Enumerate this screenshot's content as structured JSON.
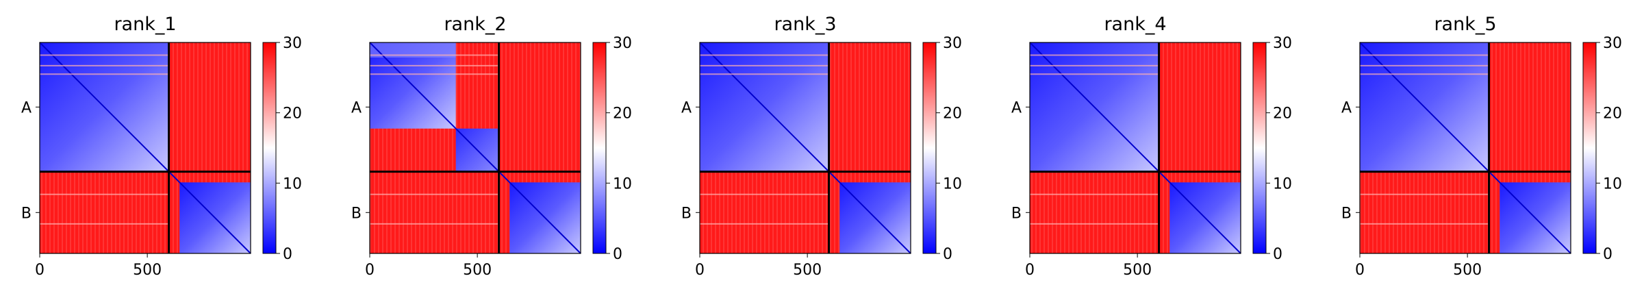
{
  "figure": {
    "colormap": {
      "low": "#0000ff",
      "mid": "#ffffff",
      "high": "#ff0000"
    },
    "chain_divider_color": "#000000"
  },
  "chart_data": [
    {
      "type": "heatmap",
      "title": "rank_1",
      "x_ticks": [
        "0",
        "500"
      ],
      "y_tick_labels": [
        "A",
        "B"
      ],
      "colorbar": {
        "ticks": [
          "0",
          "10",
          "20",
          "30"
        ],
        "range": [
          0,
          30
        ]
      },
      "n_residues": 980,
      "chain_break": 600,
      "blue_blocks": [
        [
          0,
          600,
          0,
          600
        ],
        [
          650,
          980,
          650,
          980
        ]
      ],
      "notes_domain_boundary": null
    },
    {
      "type": "heatmap",
      "title": "rank_2",
      "x_ticks": [
        "0",
        "500"
      ],
      "y_tick_labels": [
        "A",
        "B"
      ],
      "colorbar": {
        "ticks": [
          "0",
          "10",
          "20",
          "30"
        ],
        "range": [
          0,
          30
        ]
      },
      "n_residues": 980,
      "chain_break": 600,
      "blue_blocks": [
        [
          0,
          600,
          0,
          600
        ],
        [
          650,
          980,
          650,
          980
        ]
      ],
      "notes_domain_boundary": 400
    },
    {
      "type": "heatmap",
      "title": "rank_3",
      "x_ticks": [
        "0",
        "500"
      ],
      "y_tick_labels": [
        "A",
        "B"
      ],
      "colorbar": {
        "ticks": [
          "0",
          "10",
          "20",
          "30"
        ],
        "range": [
          0,
          30
        ]
      },
      "n_residues": 980,
      "chain_break": 600,
      "blue_blocks": [
        [
          0,
          600,
          0,
          600
        ],
        [
          650,
          980,
          650,
          980
        ]
      ],
      "notes_domain_boundary": null
    },
    {
      "type": "heatmap",
      "title": "rank_4",
      "x_ticks": [
        "0",
        "500"
      ],
      "y_tick_labels": [
        "A",
        "B"
      ],
      "colorbar": {
        "ticks": [
          "0",
          "10",
          "20",
          "30"
        ],
        "range": [
          0,
          30
        ]
      },
      "n_residues": 980,
      "chain_break": 600,
      "blue_blocks": [
        [
          0,
          600,
          0,
          600
        ],
        [
          650,
          980,
          650,
          980
        ]
      ],
      "notes_domain_boundary": null
    },
    {
      "type": "heatmap",
      "title": "rank_5",
      "x_ticks": [
        "0",
        "500"
      ],
      "y_tick_labels": [
        "A",
        "B"
      ],
      "colorbar": {
        "ticks": [
          "0",
          "10",
          "20",
          "30"
        ],
        "range": [
          0,
          30
        ]
      },
      "n_residues": 980,
      "chain_break": 600,
      "blue_blocks": [
        [
          0,
          600,
          0,
          600
        ],
        [
          650,
          980,
          650,
          980
        ]
      ],
      "notes_domain_boundary": null
    }
  ]
}
